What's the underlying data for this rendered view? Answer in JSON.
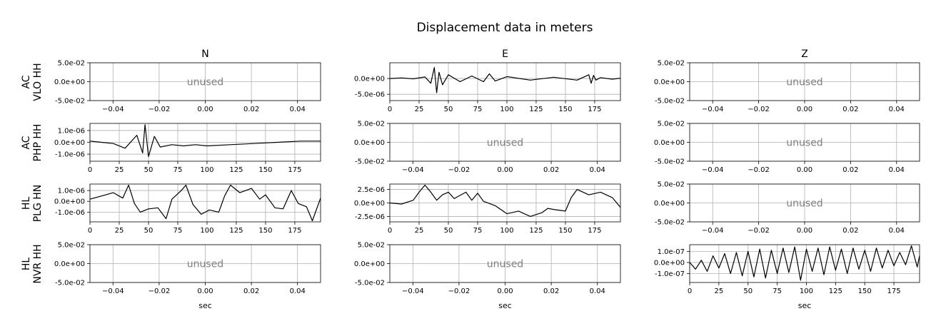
{
  "title": "Displacement data in meters",
  "columns": [
    "N",
    "E",
    "Z"
  ],
  "rows": [
    {
      "line1": "AC",
      "line2": "VLO HH"
    },
    {
      "line1": "AC",
      "line2": "PHP HH"
    },
    {
      "line1": "HL",
      "line2": "PLG HN"
    },
    {
      "line1": "HL",
      "line2": "NVR HH"
    }
  ],
  "xlabel": "sec",
  "unused_label": "unused",
  "colors": {
    "trace": "#000000",
    "grid": "#b0b0b0",
    "unused_text": "#808080"
  },
  "chart_data": [
    {
      "type": "line",
      "row": 0,
      "col": 0,
      "unused": true,
      "xlim": [
        -0.05,
        0.05
      ],
      "xticks": [
        -0.04,
        -0.02,
        0.0,
        0.02,
        0.04
      ],
      "xtick_labels": [
        "−0.04",
        "−0.02",
        "0.00",
        "0.02",
        "0.04"
      ],
      "ylim": [
        -0.05,
        0.05
      ],
      "yticks": [
        0.05,
        0.0,
        -0.05
      ],
      "ytick_labels": [
        "5.0e-02",
        "0.0e+00",
        "-5.0e-02"
      ],
      "grid": true
    },
    {
      "type": "line",
      "row": 0,
      "col": 1,
      "unused": false,
      "xlim": [
        0,
        197
      ],
      "xticks": [
        0,
        25,
        50,
        75,
        100,
        125,
        150,
        175
      ],
      "xtick_labels": [
        "0",
        "25",
        "50",
        "75",
        "100",
        "125",
        "150",
        "175"
      ],
      "ylim": [
        -7e-06,
        5e-06
      ],
      "yticks": [
        0.0,
        -5e-06
      ],
      "ytick_labels": [
        "0.0e+00",
        "-5.0e-06"
      ],
      "grid": true,
      "x": [
        0,
        10,
        20,
        30,
        35,
        38,
        40,
        42,
        45,
        50,
        60,
        70,
        80,
        85,
        90,
        100,
        120,
        140,
        160,
        170,
        172,
        174,
        176,
        180,
        190,
        197
      ],
      "y": [
        0.0,
        2e-07,
        -1e-07,
        5e-07,
        -1.5e-06,
        3.5e-06,
        -4.5e-06,
        2e-06,
        -2e-06,
        1.2e-06,
        -1e-06,
        8e-07,
        -1e-06,
        1.5e-06,
        -8e-07,
        6e-07,
        -5e-07,
        4e-07,
        -5e-07,
        1.2e-06,
        -1.5e-06,
        1e-06,
        -5e-07,
        3e-07,
        -2e-07,
        1e-07
      ]
    },
    {
      "type": "line",
      "row": 0,
      "col": 2,
      "unused": true,
      "xlim": [
        -0.05,
        0.05
      ],
      "xticks": [
        -0.04,
        -0.02,
        0.0,
        0.02,
        0.04
      ],
      "xtick_labels": [
        "−0.04",
        "−0.02",
        "0.00",
        "0.02",
        "0.04"
      ],
      "ylim": [
        -0.05,
        0.05
      ],
      "yticks": [
        0.05,
        0.0,
        -0.05
      ],
      "ytick_labels": [
        "5.0e-02",
        "0.0e+00",
        "-5.0e-02"
      ],
      "grid": true
    },
    {
      "type": "line",
      "row": 1,
      "col": 0,
      "unused": false,
      "xlim": [
        0,
        197
      ],
      "xticks": [
        0,
        25,
        50,
        75,
        100,
        125,
        150,
        175
      ],
      "xtick_labels": [
        "0",
        "25",
        "50",
        "75",
        "100",
        "125",
        "150",
        "175"
      ],
      "ylim": [
        -1.6e-06,
        1.6e-06
      ],
      "yticks": [
        1e-06,
        0.0,
        -1e-06
      ],
      "ytick_labels": [
        "1.0e-06",
        "0.0e+00",
        "-1.0e-06"
      ],
      "grid": true,
      "x": [
        0,
        10,
        20,
        30,
        40,
        45,
        47,
        50,
        55,
        60,
        70,
        80,
        90,
        100,
        120,
        140,
        160,
        180,
        197
      ],
      "y": [
        1e-07,
        0.0,
        -1e-07,
        -5e-07,
        6e-07,
        -9e-07,
        1.5e-06,
        -1.2e-06,
        5e-07,
        -4e-07,
        -2e-07,
        -3e-07,
        -2e-07,
        -3e-07,
        -2e-07,
        -1e-07,
        0.0,
        1e-07,
        1e-07
      ]
    },
    {
      "type": "line",
      "row": 1,
      "col": 1,
      "unused": true,
      "xlim": [
        -0.05,
        0.05
      ],
      "xticks": [
        -0.04,
        -0.02,
        0.0,
        0.02,
        0.04
      ],
      "xtick_labels": [
        "−0.04",
        "−0.02",
        "0.00",
        "0.02",
        "0.04"
      ],
      "ylim": [
        -0.05,
        0.05
      ],
      "yticks": [
        0.05,
        0.0,
        -0.05
      ],
      "ytick_labels": [
        "5.0e-02",
        "0.0e+00",
        "-5.0e-02"
      ],
      "grid": true
    },
    {
      "type": "line",
      "row": 1,
      "col": 2,
      "unused": true,
      "xlim": [
        -0.05,
        0.05
      ],
      "xticks": [
        -0.04,
        -0.02,
        0.0,
        0.02,
        0.04
      ],
      "xtick_labels": [
        "−0.04",
        "−0.02",
        "0.00",
        "0.02",
        "0.04"
      ],
      "ylim": [
        -0.05,
        0.05
      ],
      "yticks": [
        0.05,
        0.0,
        -0.05
      ],
      "ytick_labels": [
        "5.0e-02",
        "0.0e+00",
        "-5.0e-02"
      ],
      "grid": true
    },
    {
      "type": "line",
      "row": 2,
      "col": 0,
      "unused": false,
      "xlim": [
        0,
        197
      ],
      "xticks": [
        0,
        25,
        50,
        75,
        100,
        125,
        150,
        175
      ],
      "xtick_labels": [
        "0",
        "25",
        "50",
        "75",
        "100",
        "125",
        "150",
        "175"
      ],
      "ylim": [
        -1.9e-06,
        1.6e-06
      ],
      "yticks": [
        1e-06,
        0.0,
        -1e-06
      ],
      "ytick_labels": [
        "1.0e-06",
        "0.0e+00",
        "-1.0e-06"
      ],
      "grid": true,
      "x": [
        0,
        10,
        20,
        28,
        33,
        38,
        43,
        50,
        58,
        65,
        70,
        78,
        82,
        88,
        95,
        102,
        110,
        115,
        120,
        128,
        138,
        145,
        150,
        158,
        165,
        172,
        178,
        185,
        190,
        197
      ],
      "y": [
        2e-07,
        5e-07,
        8e-07,
        3e-07,
        1.5e-06,
        -2e-07,
        -1e-06,
        -7e-07,
        -6e-07,
        -1.6e-06,
        2e-07,
        1e-06,
        1.5e-06,
        -3e-07,
        -1.2e-06,
        -8e-07,
        -1e-06,
        5e-07,
        1.5e-06,
        8e-07,
        1.2e-06,
        2e-07,
        6e-07,
        -6e-07,
        -7e-07,
        1e-06,
        -2e-07,
        -5e-07,
        -1.8e-06,
        3e-07
      ]
    },
    {
      "type": "line",
      "row": 2,
      "col": 1,
      "unused": false,
      "xlim": [
        0,
        197
      ],
      "xticks": [
        0,
        25,
        50,
        75,
        100,
        125,
        150,
        175
      ],
      "xtick_labels": [
        "0",
        "25",
        "50",
        "75",
        "100",
        "125",
        "150",
        "175"
      ],
      "ylim": [
        -3.5e-06,
        3.5e-06
      ],
      "yticks": [
        2.5e-06,
        0.0,
        -2.5e-06
      ],
      "ytick_labels": [
        "2.5e-06",
        "0.0e+00",
        "-2.5e-06"
      ],
      "grid": true,
      "x": [
        0,
        10,
        20,
        25,
        30,
        35,
        40,
        45,
        50,
        55,
        65,
        70,
        75,
        80,
        90,
        100,
        110,
        120,
        130,
        135,
        140,
        150,
        155,
        160,
        170,
        180,
        190,
        197
      ],
      "y": [
        0.0,
        -2e-07,
        5e-07,
        2e-06,
        3.3e-06,
        2e-06,
        5e-07,
        1.5e-06,
        2e-06,
        8e-07,
        2e-06,
        5e-07,
        1.8e-06,
        3e-07,
        -5e-07,
        -2e-06,
        -1.5e-06,
        -2.5e-06,
        -1.8e-06,
        -1e-06,
        -1.2e-06,
        -1.5e-06,
        1e-06,
        2.5e-06,
        1.5e-06,
        2e-06,
        1e-06,
        -8e-07
      ]
    },
    {
      "type": "line",
      "row": 2,
      "col": 2,
      "unused": true,
      "xlim": [
        -0.05,
        0.05
      ],
      "xticks": [
        -0.04,
        -0.02,
        0.0,
        0.02,
        0.04
      ],
      "xtick_labels": [
        "−0.04",
        "−0.02",
        "0.00",
        "0.02",
        "0.04"
      ],
      "ylim": [
        -0.05,
        0.05
      ],
      "yticks": [
        0.05,
        0.0,
        -0.05
      ],
      "ytick_labels": [
        "5.0e-02",
        "0.0e+00",
        "-5.0e-02"
      ],
      "grid": true
    },
    {
      "type": "line",
      "row": 3,
      "col": 0,
      "unused": true,
      "xlim": [
        -0.05,
        0.05
      ],
      "xticks": [
        -0.04,
        -0.02,
        0.0,
        0.02,
        0.04
      ],
      "xtick_labels": [
        "−0.04",
        "−0.02",
        "0.00",
        "0.02",
        "0.04"
      ],
      "ylim": [
        -0.05,
        0.05
      ],
      "yticks": [
        0.05,
        0.0,
        -0.05
      ],
      "ytick_labels": [
        "5.0e-02",
        "0.0e+00",
        "-5.0e-02"
      ],
      "grid": true
    },
    {
      "type": "line",
      "row": 3,
      "col": 1,
      "unused": true,
      "xlim": [
        -0.05,
        0.05
      ],
      "xticks": [
        -0.04,
        -0.02,
        0.0,
        0.02,
        0.04
      ],
      "xtick_labels": [
        "−0.04",
        "−0.02",
        "0.00",
        "0.02",
        "0.04"
      ],
      "ylim": [
        -0.05,
        0.05
      ],
      "yticks": [
        0.05,
        0.0,
        -0.05
      ],
      "ytick_labels": [
        "5.0e-02",
        "0.0e+00",
        "-5.0e-02"
      ],
      "grid": true
    },
    {
      "type": "line",
      "row": 3,
      "col": 2,
      "unused": false,
      "xlim": [
        0,
        197
      ],
      "xticks": [
        0,
        25,
        50,
        75,
        100,
        125,
        150,
        175
      ],
      "xtick_labels": [
        "0",
        "25",
        "50",
        "75",
        "100",
        "125",
        "150",
        "175"
      ],
      "ylim": [
        -1.8e-07,
        1.6e-07
      ],
      "yticks": [
        1e-07,
        0.0,
        -1e-07
      ],
      "ytick_labels": [
        "1.0e-07",
        "0.0e+00",
        "-1.0e-07"
      ],
      "grid": true,
      "x": [
        0,
        5,
        10,
        15,
        20,
        25,
        30,
        35,
        40,
        45,
        50,
        55,
        60,
        65,
        70,
        75,
        80,
        85,
        90,
        95,
        100,
        105,
        110,
        115,
        120,
        125,
        130,
        135,
        140,
        145,
        150,
        155,
        160,
        165,
        170,
        175,
        180,
        185,
        190,
        195,
        197
      ],
      "y": [
        0.0,
        -6e-08,
        2e-08,
        -8e-08,
        6e-08,
        -5e-08,
        8e-08,
        -1e-07,
        9e-08,
        -1.2e-07,
        1e-07,
        -1.3e-07,
        1.2e-07,
        -1.4e-07,
        1.1e-07,
        -1e-07,
        1.3e-07,
        -9e-08,
        1.4e-07,
        -1.6e-07,
        1.2e-07,
        -8e-08,
        1.3e-07,
        -1.1e-07,
        1.4e-07,
        -7e-08,
        1.2e-07,
        -1e-07,
        1.3e-07,
        -6e-08,
        1.1e-07,
        -8e-08,
        1.3e-07,
        -5e-08,
        1.1e-07,
        -3e-08,
        9e-08,
        -2e-08,
        1.5e-07,
        -4e-08,
        6e-08
      ]
    }
  ]
}
